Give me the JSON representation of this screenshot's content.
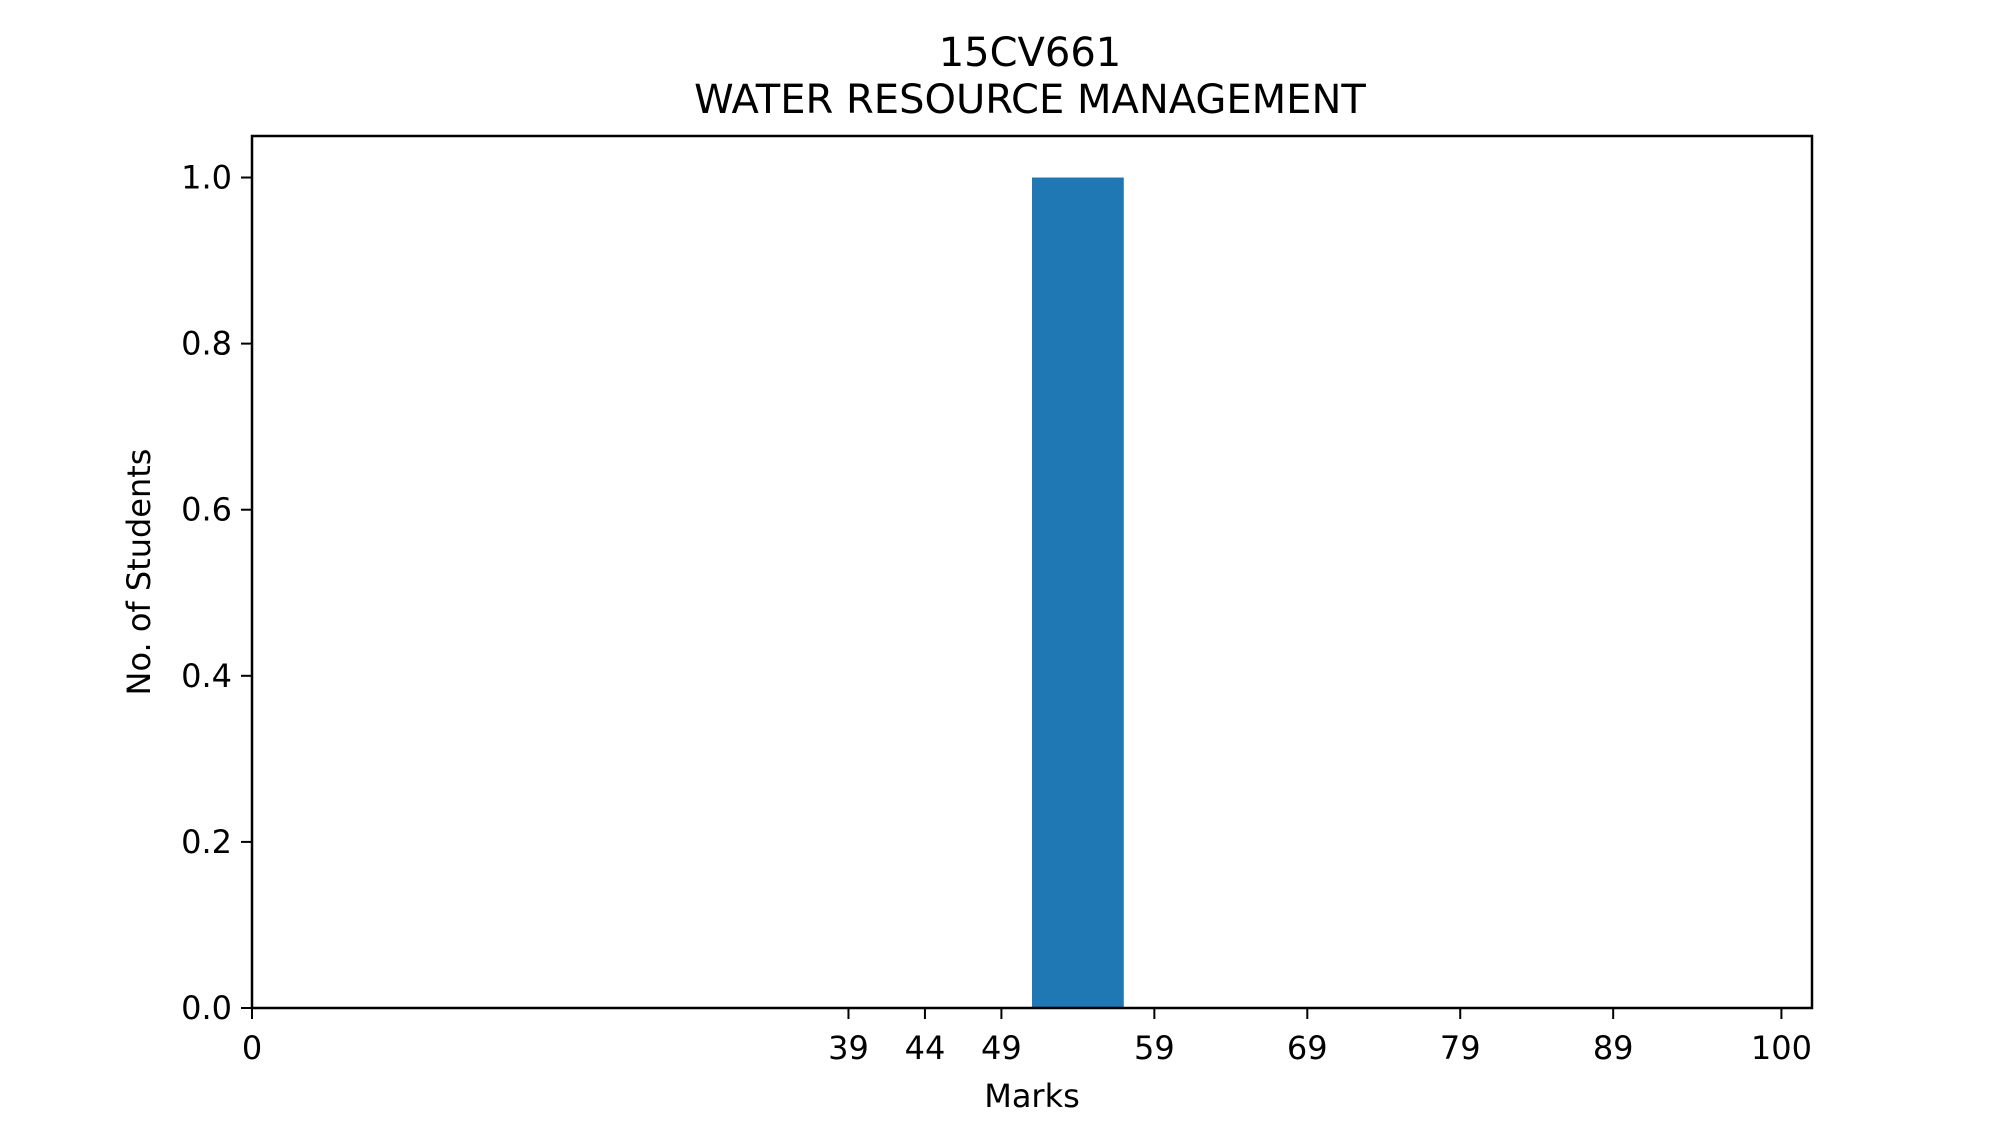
{
  "chart_data": {
    "type": "bar",
    "title": "15CV661",
    "subtitle": "WATER RESOURCE MANAGEMENT",
    "xlabel": "Marks",
    "ylabel": "No. of Students",
    "xticks": [
      0,
      39,
      44,
      49,
      59,
      69,
      79,
      89,
      100
    ],
    "yticks": [
      0.0,
      0.2,
      0.4,
      0.6,
      0.8,
      1.0
    ],
    "xlim": [
      0,
      102
    ],
    "ylim": [
      0,
      1.05
    ],
    "grid": false,
    "bar_color": "#1f77b4",
    "bars": [
      {
        "x_start": 51,
        "x_end": 57,
        "value": 1.0
      }
    ]
  }
}
